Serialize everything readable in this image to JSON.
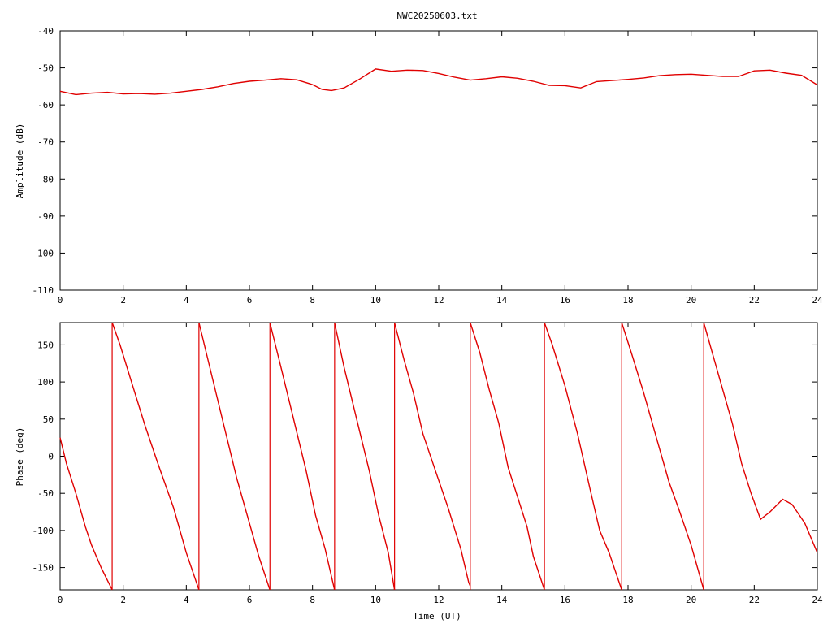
{
  "chart_data": [
    {
      "type": "line",
      "title": "NWC20250603.txt",
      "xlabel": "",
      "ylabel": "Amplitude (dB)",
      "xlim": [
        0,
        24
      ],
      "ylim": [
        -110,
        -40
      ],
      "xticks": [
        "0",
        "2",
        "4",
        "6",
        "8",
        "10",
        "12",
        "14",
        "16",
        "18",
        "20",
        "22",
        "24"
      ],
      "yticks": [
        "-110",
        "-100",
        "-90",
        "-80",
        "-70",
        "-60",
        "-50",
        "-40"
      ],
      "grid": false,
      "series": [
        {
          "color": "#e00000",
          "x": [
            0,
            0.5,
            1,
            1.5,
            2,
            2.5,
            3,
            3.5,
            4,
            4.5,
            5,
            5.5,
            6,
            6.5,
            7,
            7.5,
            8,
            8.3,
            8.6,
            9,
            9.5,
            10,
            10.5,
            11,
            11.5,
            12,
            12.5,
            13,
            13.5,
            14,
            14.5,
            15,
            15.5,
            16,
            16.5,
            17,
            17.5,
            18,
            18.5,
            19,
            19.5,
            20,
            20.5,
            21,
            21.5,
            22,
            22.5,
            23,
            23.5,
            24
          ],
          "y": [
            -56.3,
            -57.2,
            -56.8,
            -56.6,
            -57.0,
            -56.9,
            -57.1,
            -56.8,
            -56.3,
            -55.8,
            -55.1,
            -54.2,
            -53.6,
            -53.3,
            -52.9,
            -53.2,
            -54.5,
            -55.8,
            -56.1,
            -55.4,
            -53.0,
            -50.3,
            -50.9,
            -50.6,
            -50.7,
            -51.5,
            -52.5,
            -53.3,
            -52.9,
            -52.4,
            -52.8,
            -53.6,
            -54.7,
            -54.8,
            -55.4,
            -53.7,
            -53.4,
            -53.1,
            -52.7,
            -52.1,
            -51.8,
            -51.7,
            -52.0,
            -52.3,
            -52.3,
            -50.8,
            -50.6,
            -51.4,
            -52.0,
            -54.6
          ]
        }
      ]
    },
    {
      "type": "line",
      "title": "",
      "xlabel": "Time (UT)",
      "ylabel": "Phase (deg)",
      "xlim": [
        0,
        24
      ],
      "ylim": [
        -180,
        180
      ],
      "xticks": [
        "0",
        "2",
        "4",
        "6",
        "8",
        "10",
        "12",
        "14",
        "16",
        "18",
        "20",
        "22",
        "24"
      ],
      "yticks": [
        "-150",
        "-100",
        "-50",
        "0",
        "50",
        "100",
        "150"
      ],
      "grid": false,
      "series": [
        {
          "color": "#e00000",
          "segments": [
            {
              "x": [
                0,
                0.2,
                0.5,
                0.8,
                1.0,
                1.3,
                1.65
              ],
              "y": [
                25,
                -10,
                -50,
                -95,
                -120,
                -150,
                -180
              ]
            },
            {
              "x": [
                1.65,
                1.9,
                2.3,
                2.7,
                3.1,
                3.6,
                4.0,
                4.4
              ],
              "y": [
                180,
                150,
                95,
                40,
                -10,
                -70,
                -130,
                -180
              ]
            },
            {
              "x": [
                4.4,
                4.8,
                5.2,
                5.6,
                6.0,
                6.3,
                6.65
              ],
              "y": [
                180,
                110,
                40,
                -30,
                -90,
                -135,
                -180
              ]
            },
            {
              "x": [
                6.65,
                7.0,
                7.4,
                7.8,
                8.1,
                8.4,
                8.7
              ],
              "y": [
                180,
                120,
                50,
                -20,
                -80,
                -125,
                -180
              ]
            },
            {
              "x": [
                8.7,
                9.0,
                9.4,
                9.8,
                10.1,
                10.4,
                10.6
              ],
              "y": [
                180,
                120,
                50,
                -20,
                -80,
                -130,
                -180
              ]
            },
            {
              "x": [
                10.6,
                10.9,
                11.2,
                11.5,
                11.9,
                12.3,
                12.7,
                12.95,
                13.0
              ],
              "y": [
                180,
                130,
                85,
                30,
                -20,
                -70,
                -125,
                -170,
                -175
              ]
            },
            {
              "x": [
                13.0,
                13.3,
                13.6,
                13.9,
                14.2,
                14.5,
                14.8,
                15.0,
                15.35
              ],
              "y": [
                180,
                140,
                90,
                45,
                -15,
                -55,
                -95,
                -135,
                -180
              ]
            },
            {
              "x": [
                15.35,
                15.6,
                16.0,
                16.4,
                16.8,
                17.1,
                17.4,
                17.8
              ],
              "y": [
                180,
                150,
                95,
                30,
                -45,
                -100,
                -130,
                -180
              ]
            },
            {
              "x": [
                17.8,
                18.1,
                18.5,
                18.9,
                19.3,
                19.6,
                20.0,
                20.4
              ],
              "y": [
                180,
                140,
                85,
                25,
                -35,
                -70,
                -120,
                -180
              ]
            },
            {
              "x": [
                20.4,
                20.7,
                21.0,
                21.3,
                21.6,
                21.9,
                22.2,
                22.5,
                22.9,
                23.2,
                23.6,
                24.0
              ],
              "y": [
                180,
                135,
                90,
                45,
                -10,
                -50,
                -85,
                -75,
                -58,
                -65,
                -90,
                -130
              ]
            }
          ],
          "wraps": [
            1.65,
            4.4,
            6.65,
            8.7,
            10.6,
            13.0,
            15.35,
            17.8,
            20.4
          ]
        }
      ]
    }
  ]
}
